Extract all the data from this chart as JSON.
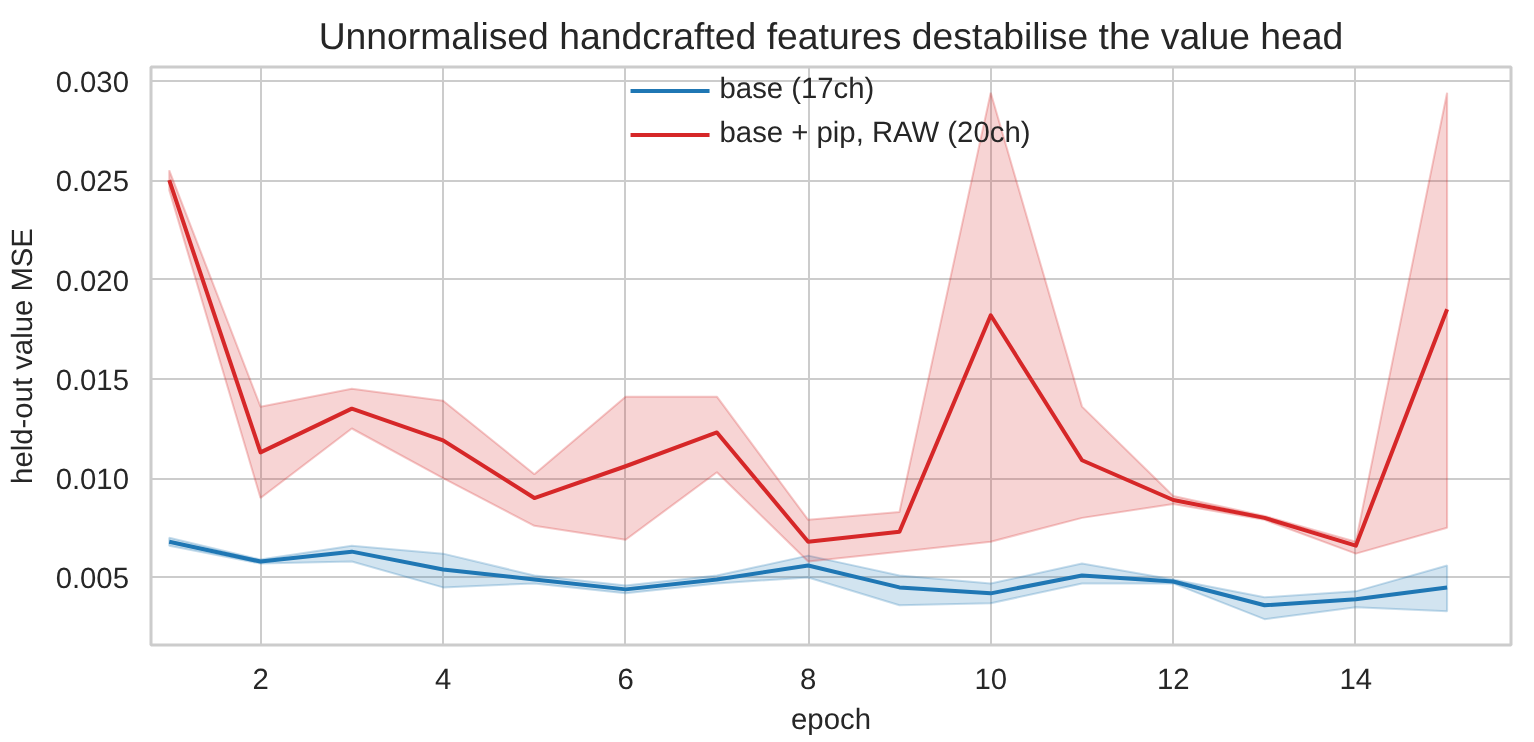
{
  "chart_data": {
    "type": "line",
    "title": "Unnormalised handcrafted features destabilise the value head",
    "xlabel": "epoch",
    "ylabel": "held-out value MSE",
    "x": [
      1,
      2,
      3,
      4,
      5,
      6,
      7,
      8,
      9,
      10,
      11,
      12,
      13,
      14,
      15
    ],
    "series": [
      {
        "name": "base (17ch)",
        "color": "#1f77b4",
        "values": [
          0.0068,
          0.0058,
          0.0063,
          0.0054,
          0.0049,
          0.0044,
          0.0049,
          0.0056,
          0.0045,
          0.0042,
          0.0051,
          0.0048,
          0.0036,
          0.0039,
          0.0045
        ],
        "upper": [
          0.007,
          0.0059,
          0.0066,
          0.0062,
          0.0051,
          0.0046,
          0.0051,
          0.0061,
          0.0051,
          0.0047,
          0.0057,
          0.0049,
          0.004,
          0.0043,
          0.0056
        ],
        "lower": [
          0.0066,
          0.0057,
          0.0058,
          0.0045,
          0.0047,
          0.0042,
          0.0047,
          0.005,
          0.0036,
          0.0037,
          0.0047,
          0.0047,
          0.0029,
          0.0035,
          0.0033
        ]
      },
      {
        "name": "base + pip, RAW (20ch)",
        "color": "#d62728",
        "values": [
          0.025,
          0.0113,
          0.0135,
          0.0119,
          0.009,
          0.0106,
          0.0123,
          0.0068,
          0.0073,
          0.0182,
          0.0109,
          0.0089,
          0.008,
          0.0066,
          0.0185
        ],
        "upper": [
          0.0255,
          0.0136,
          0.0145,
          0.0139,
          0.0102,
          0.0141,
          0.0141,
          0.0079,
          0.0083,
          0.0294,
          0.0136,
          0.0091,
          0.0081,
          0.0068,
          0.0294
        ],
        "lower": [
          0.0245,
          0.009,
          0.0125,
          0.01,
          0.0076,
          0.0069,
          0.0103,
          0.0058,
          0.0063,
          0.0068,
          0.008,
          0.0087,
          0.0079,
          0.0062,
          0.0075
        ]
      }
    ],
    "xlim": [
      0.8,
      15.7
    ],
    "ylim": [
      0.0016,
      0.0307
    ],
    "xticks": [
      2,
      4,
      6,
      8,
      10,
      12,
      14
    ],
    "yticks": [
      {
        "value": 0.005,
        "label": "0.005"
      },
      {
        "value": 0.01,
        "label": "0.010"
      },
      {
        "value": 0.015,
        "label": "0.015"
      },
      {
        "value": 0.02,
        "label": "0.020"
      },
      {
        "value": 0.025,
        "label": "0.025"
      },
      {
        "value": 0.03,
        "label": "0.030"
      }
    ],
    "grid": true,
    "legend": "top",
    "line_style": "solid",
    "marker": "none"
  }
}
